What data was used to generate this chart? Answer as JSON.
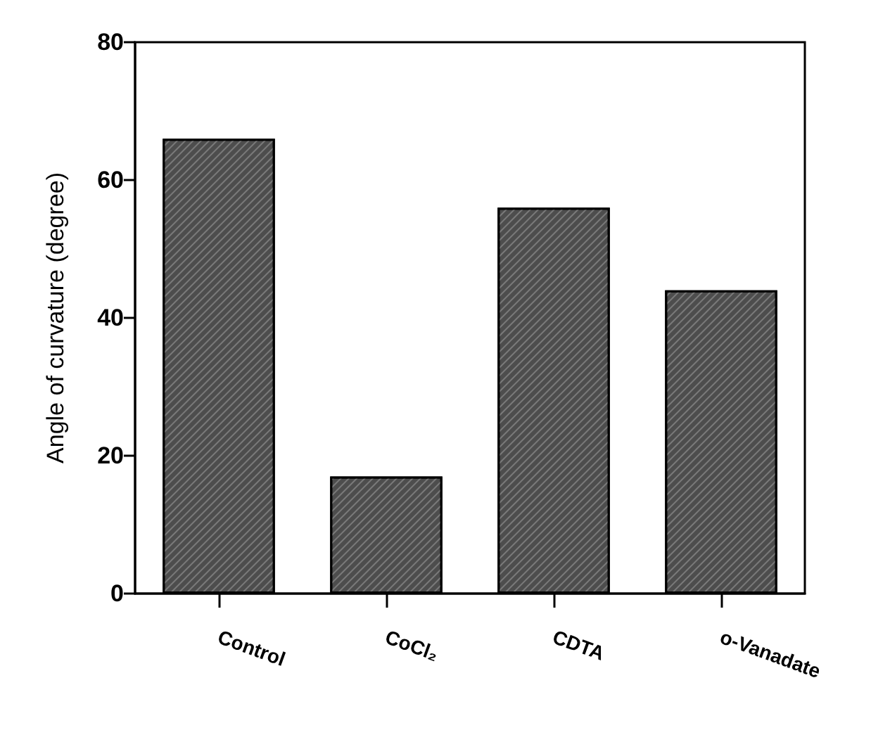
{
  "chart_data": {
    "type": "bar",
    "ylabel": "Angle of curvature (degree)",
    "categories": [
      "Control",
      "CoCl₂",
      "CDTA",
      "o-Vanadate"
    ],
    "values": [
      66,
      17,
      56,
      44
    ],
    "color": "#4d4d4d",
    "ylim": [
      0,
      80
    ],
    "yticks": [
      0,
      20,
      40,
      60,
      80
    ]
  }
}
